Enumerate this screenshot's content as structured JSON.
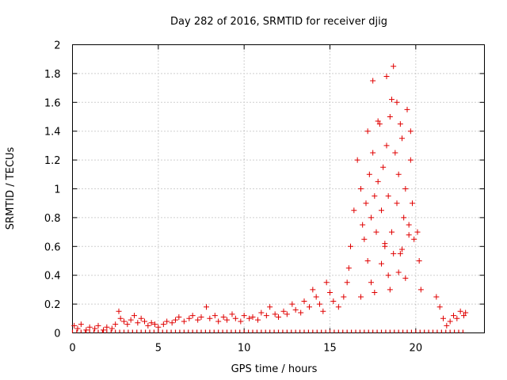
{
  "chart_data": {
    "type": "scatter",
    "title": "Day 282 of 2016, SRMTID for receiver djig",
    "xlabel": "GPS time / hours",
    "ylabel": "SRMTID / TECUs",
    "xlim": [
      0,
      24
    ],
    "ylim": [
      0,
      2
    ],
    "x_ticks": [
      0,
      5,
      10,
      15,
      20
    ],
    "x_tick_labels": [
      "0",
      "5",
      "10",
      "15",
      "20"
    ],
    "y_ticks": [
      0,
      0.2,
      0.4,
      0.6,
      0.8,
      1.0,
      1.2,
      1.4,
      1.6,
      1.8,
      2.0
    ],
    "y_tick_labels": [
      "0",
      "0.2",
      "0.4",
      "0.6",
      "0.8",
      "1",
      "1.2",
      "1.4",
      "1.6",
      "1.8",
      "2"
    ],
    "grid": true,
    "marker": "plus",
    "series": [
      {
        "name": "SRMTID",
        "color": "#e00000",
        "x": [
          0.1,
          0.3,
          0.5,
          0.8,
          1.0,
          1.3,
          1.5,
          1.8,
          2.0,
          2.3,
          2.5,
          2.7,
          2.8,
          3.0,
          3.2,
          3.4,
          3.6,
          3.8,
          4.0,
          4.2,
          4.4,
          4.6,
          4.8,
          5.0,
          5.3,
          5.5,
          5.8,
          6.0,
          6.2,
          6.5,
          6.8,
          7.0,
          7.3,
          7.5,
          7.8,
          8.0,
          8.3,
          8.5,
          8.8,
          9.0,
          9.3,
          9.5,
          9.8,
          10.0,
          10.3,
          10.5,
          10.8,
          11.0,
          11.3,
          11.5,
          11.8,
          12.0,
          12.3,
          12.5,
          12.8,
          13.0,
          13.3,
          13.5,
          13.8,
          14.0,
          14.2,
          14.4,
          14.6,
          14.8,
          15.0,
          15.2,
          15.5,
          15.8,
          16.0,
          16.1,
          16.2,
          16.4,
          16.6,
          16.8,
          16.9,
          17.0,
          17.1,
          17.2,
          17.3,
          17.4,
          17.5,
          17.6,
          17.7,
          17.8,
          17.9,
          18.0,
          18.1,
          18.2,
          18.3,
          18.4,
          18.5,
          18.6,
          18.7,
          18.8,
          18.9,
          19.0,
          19.1,
          19.2,
          19.3,
          19.4,
          19.5,
          19.6,
          19.7,
          19.8,
          19.9,
          20.1,
          20.2,
          20.3,
          21.2,
          21.4,
          21.6,
          21.8,
          22.0,
          22.2,
          22.4,
          22.6,
          22.8,
          22.9,
          17.2,
          17.4,
          17.6,
          18.0,
          18.2,
          18.4,
          18.5,
          18.7,
          19.0,
          19.2,
          19.4,
          19.6,
          17.5,
          18.3,
          18.9,
          19.1,
          17.8,
          18.6,
          16.8,
          19.7
        ],
        "y": [
          0.05,
          0.03,
          0.06,
          0.02,
          0.04,
          0.03,
          0.05,
          0.02,
          0.04,
          0.03,
          0.06,
          0.15,
          0.1,
          0.08,
          0.06,
          0.09,
          0.12,
          0.07,
          0.1,
          0.08,
          0.05,
          0.07,
          0.06,
          0.04,
          0.06,
          0.08,
          0.07,
          0.09,
          0.11,
          0.08,
          0.1,
          0.12,
          0.09,
          0.11,
          0.18,
          0.1,
          0.12,
          0.08,
          0.11,
          0.09,
          0.13,
          0.1,
          0.08,
          0.12,
          0.1,
          0.11,
          0.09,
          0.14,
          0.12,
          0.18,
          0.13,
          0.11,
          0.15,
          0.13,
          0.2,
          0.16,
          0.14,
          0.22,
          0.18,
          0.3,
          0.25,
          0.2,
          0.15,
          0.35,
          0.28,
          0.22,
          0.18,
          0.25,
          0.35,
          0.45,
          0.6,
          0.85,
          1.2,
          1.0,
          0.75,
          0.65,
          0.9,
          1.4,
          1.1,
          0.8,
          1.25,
          0.95,
          0.7,
          1.05,
          1.45,
          0.85,
          1.15,
          0.6,
          1.3,
          0.95,
          1.5,
          0.7,
          1.85,
          1.25,
          0.9,
          1.1,
          0.55,
          1.35,
          0.8,
          1.0,
          1.55,
          0.75,
          1.2,
          0.9,
          0.65,
          0.7,
          0.5,
          0.3,
          0.25,
          0.18,
          0.1,
          0.05,
          0.08,
          0.12,
          0.1,
          0.15,
          0.12,
          0.14,
          0.5,
          0.35,
          0.28,
          0.48,
          0.62,
          0.4,
          0.3,
          0.55,
          0.42,
          0.58,
          0.38,
          0.68,
          1.75,
          1.78,
          1.6,
          1.45,
          1.47,
          1.62,
          0.25,
          1.4
        ]
      }
    ],
    "baseline_tick_x": [
      0,
      0.25,
      0.5,
      0.75,
      1,
      1.25,
      1.5,
      1.75,
      2,
      2.25,
      2.5,
      2.75,
      3,
      3.25,
      3.5,
      3.75,
      4,
      4.25,
      4.5,
      4.75,
      5,
      5.25,
      5.5,
      5.75,
      6,
      6.25,
      6.5,
      6.75,
      7,
      7.25,
      7.5,
      7.75,
      8,
      8.25,
      8.5,
      8.75,
      9,
      9.25,
      9.5,
      9.75,
      10,
      10.25,
      10.5,
      10.75,
      11,
      11.25,
      11.5,
      11.75,
      12,
      12.25,
      12.5,
      12.75,
      13,
      13.25,
      13.5,
      13.75,
      14,
      14.25,
      14.5,
      14.75,
      15,
      15.25,
      15.5,
      15.75,
      16,
      16.25,
      16.5,
      16.75,
      17,
      17.25,
      17.5,
      17.75,
      18,
      18.25,
      18.5,
      18.75,
      19,
      19.25,
      19.5,
      19.75,
      20,
      20.25,
      20.5,
      20.75,
      21,
      21.25,
      21.5,
      21.75,
      22,
      22.25,
      22.5,
      22.75
    ]
  }
}
